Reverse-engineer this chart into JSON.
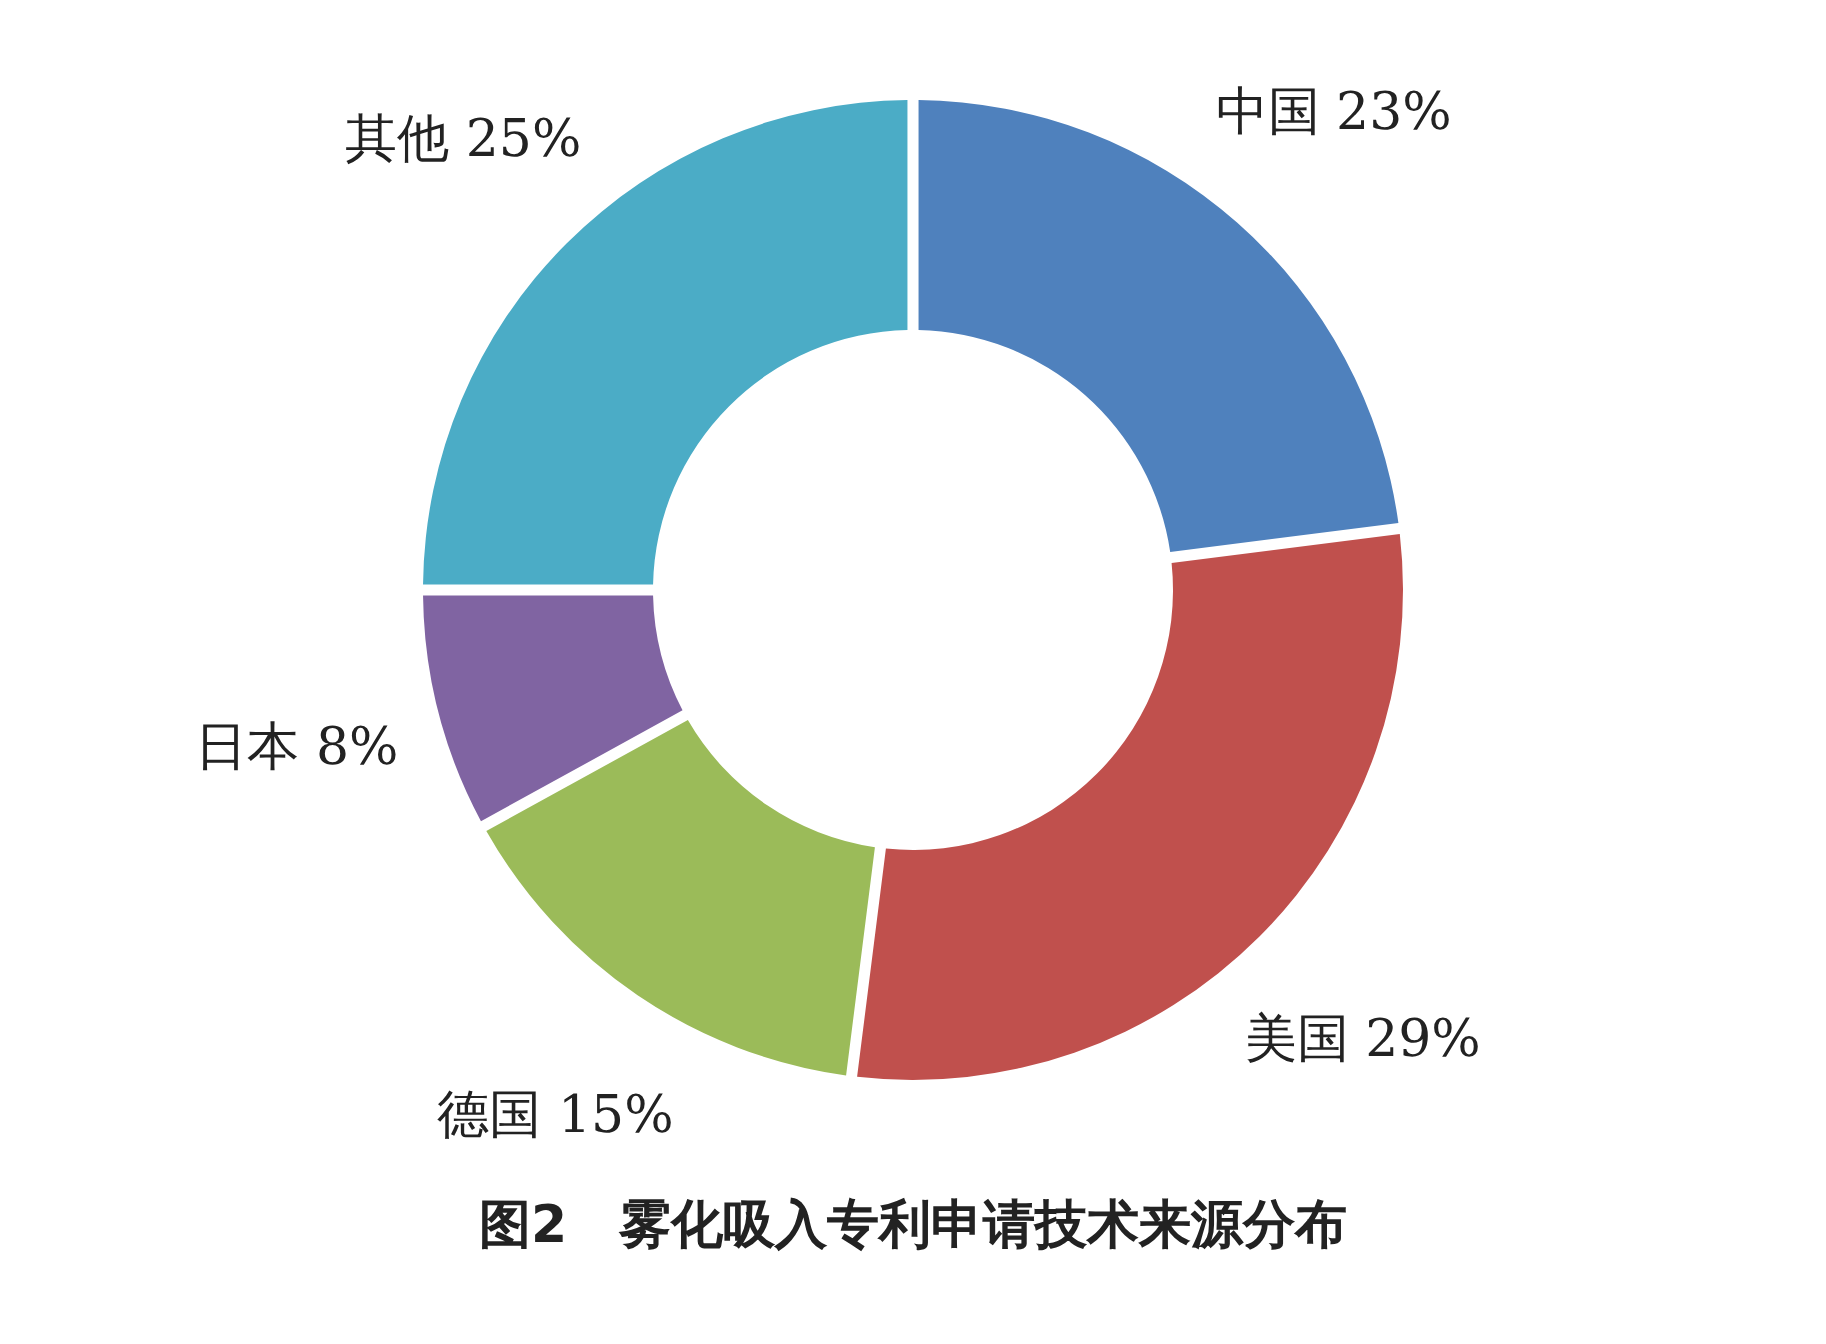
{
  "chart_data": {
    "type": "donut",
    "title": "图2　雾化吸入专利申请技术来源分布",
    "categories": [
      "中国",
      "美国",
      "德国",
      "日本",
      "其他"
    ],
    "values": [
      23,
      29,
      15,
      8,
      25
    ],
    "value_labels": [
      "23%",
      "29%",
      "15%",
      "8%",
      "25%"
    ],
    "colors": [
      "#4f81bd",
      "#c0504d",
      "#9bbb59",
      "#8064a2",
      "#4bacc6"
    ]
  }
}
